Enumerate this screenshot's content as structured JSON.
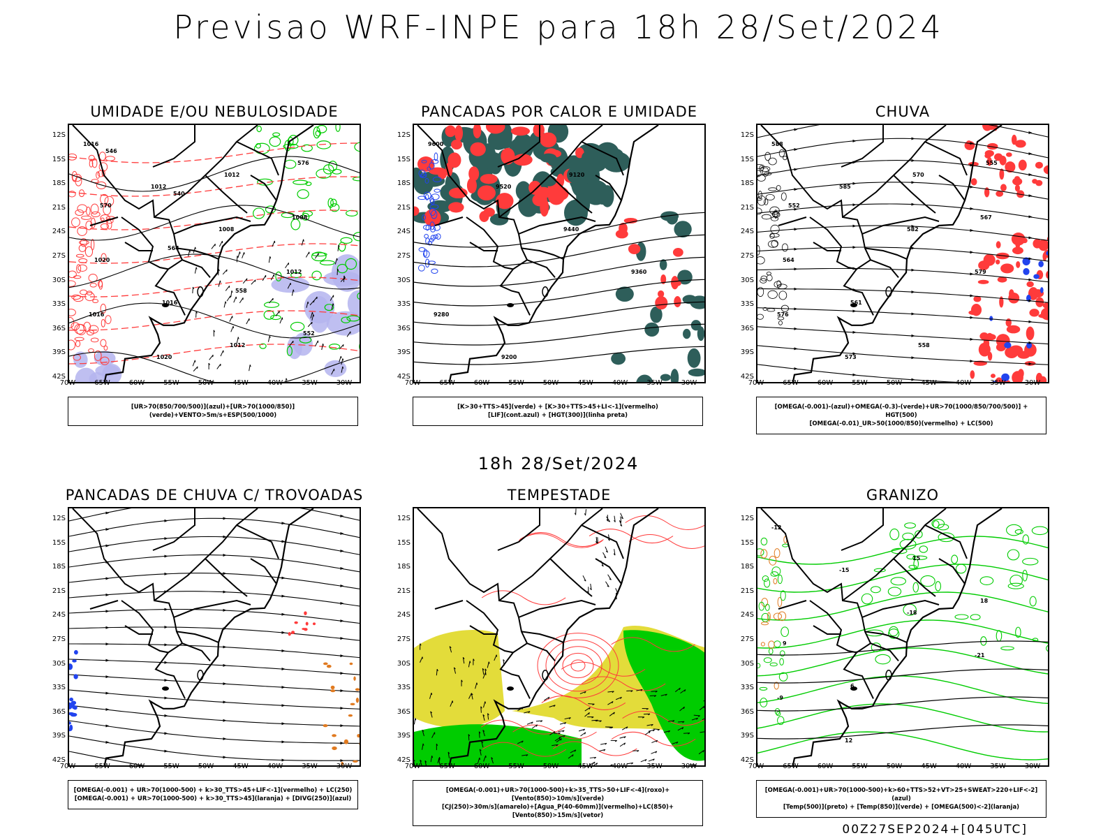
{
  "header": {
    "title": "Previsao WRF-INPE  para 18h 28/Set/2024",
    "subtitle": "18h 28/Set/2024",
    "footer": "00Z27SEP2024+[045UTC]"
  },
  "axes": {
    "lat_ticks": [
      "12S",
      "15S",
      "18S",
      "21S",
      "24S",
      "27S",
      "30S",
      "33S",
      "36S",
      "39S",
      "42S"
    ],
    "lon_ticks": [
      "70W",
      "65W",
      "60W",
      "55W",
      "50W",
      "45W",
      "40W",
      "35W",
      "30W"
    ]
  },
  "colors": {
    "red": "#ff3b3b",
    "green": "#00cc00",
    "blue": "#2244ee",
    "lavender": "#b4b4ee",
    "teal": "#2e5e5a",
    "yellow": "#e3dc3a",
    "orange": "#e07a20",
    "contour": "#000000"
  },
  "panels": [
    {
      "id": "umidade",
      "title": "UMIDADE E/OU NEBULOSIDADE",
      "legend": [
        "[UR>70(850/700/500)](azul)+[UR>70(1000/850)](verde)+VENTO>5m/s+ESP(500/1000)"
      ],
      "labels": [
        "1016",
        "1012",
        "1008",
        "1012",
        "1016",
        "1020",
        "1012",
        "1008",
        "1020",
        "1016",
        "1012",
        "576",
        "570",
        "564",
        "558",
        "552",
        "546",
        "540"
      ]
    },
    {
      "id": "pancadas_calor",
      "title": "PANCADAS POR CALOR E UMIDADE",
      "legend": [
        "[K>30+TTS>45](verde) + [K>30+TTS>45+LI<-1](vermelho)",
        "[LIF](cont.azul) + [HGT(300)](linha preta)"
      ],
      "labels": [
        "9600",
        "9520",
        "9440",
        "9360",
        "9280",
        "9200",
        "9120"
      ]
    },
    {
      "id": "chuva",
      "title": "CHUVA",
      "legend": [
        "[OMEGA(-0.001)-(azul)+OMEGA(-0.3)-(verde)+UR>70(1000/850/700/500)] + HGT(500)",
        "[OMEGA(-0.01)_UR>50(1000/850)(vermelho) + LC(500)"
      ],
      "labels": [
        "588",
        "585",
        "582",
        "579",
        "576",
        "573",
        "570",
        "567",
        "564",
        "561",
        "558",
        "555",
        "552"
      ]
    },
    {
      "id": "trovoadas",
      "title": "PANCADAS DE CHUVA C/ TROVOADAS",
      "legend": [
        "[OMEGA(-0.001) + UR>70(1000-500) + k>30_TTS>45+LIF<-1](vermelho) + LC(250)",
        "[OMEGA(-0.001) + UR>70(1000-500) + k>30_TTS>45](laranja) + [DIVG(250)](azul)"
      ],
      "labels": []
    },
    {
      "id": "tempestade",
      "title": "TEMPESTADE",
      "legend": [
        "[OMEGA(-0.001)+UR>70(1000-500)+k>35_TTS>50+LIF<-4](roxo)+[Vento(850)>10m/s](verde)",
        "[CJ(250)>30m/s](amarelo)+[Agua_P(40-60mm)](vermelho)+LC(850)+[Vento(850)>15m/s](vetor)"
      ],
      "labels": []
    },
    {
      "id": "granizo",
      "title": "GRANIZO",
      "legend": [
        "[OMEGA(-0.001)+UR>70(1000-500)+k>60+TTS>52+VT>25+SWEAT>220+LIF<-2](azul)",
        "[Temp(500)](preto) + [Temp(850)](verde) + [OMEGA(500)<-2](laranja)"
      ],
      "labels": [
        "-12",
        "-15",
        "-18",
        "-21",
        "-9",
        "12",
        "15",
        "18",
        "9",
        "6"
      ]
    }
  ]
}
